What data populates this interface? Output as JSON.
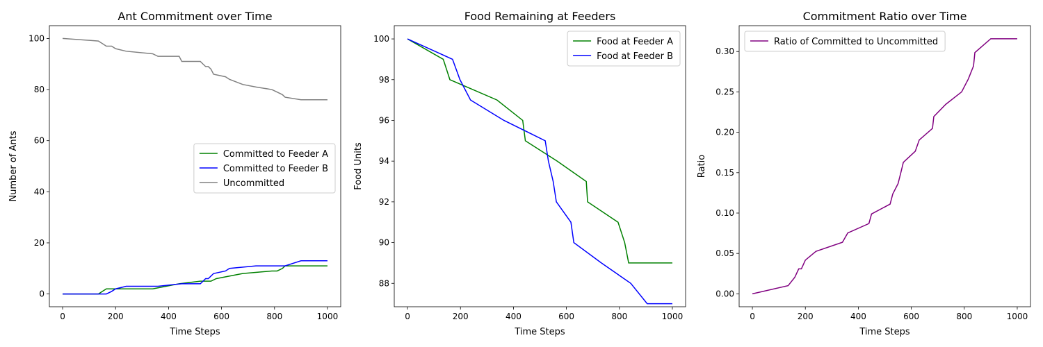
{
  "chart_data": [
    {
      "type": "line",
      "title": "Ant Commitment over Time",
      "xlabel": "Time Steps",
      "ylabel": "Number of Ants",
      "xlim": [
        -50,
        1050
      ],
      "ylim": [
        -5,
        105
      ],
      "xticks": [
        0,
        200,
        400,
        600,
        800,
        1000
      ],
      "yticks": [
        0,
        20,
        40,
        60,
        80,
        100
      ],
      "legend_position": "center-right",
      "series": [
        {
          "name": "Committed to Feeder A",
          "color": "#008000",
          "x": [
            0,
            135,
            150,
            165,
            200,
            240,
            340,
            440,
            520,
            560,
            580,
            680,
            790,
            810,
            830,
            840,
            1000
          ],
          "y": [
            0,
            0,
            1,
            2,
            2,
            2,
            2,
            4,
            5,
            5,
            6,
            8,
            9,
            9,
            10,
            11,
            11
          ]
        },
        {
          "name": "Committed to Feeder B",
          "color": "#0000ff",
          "x": [
            0,
            165,
            185,
            200,
            240,
            360,
            450,
            520,
            540,
            550,
            560,
            570,
            615,
            630,
            730,
            840,
            900,
            1000
          ],
          "y": [
            0,
            0,
            1,
            2,
            3,
            3,
            4,
            4,
            6,
            6,
            7,
            8,
            9,
            10,
            11,
            11,
            13,
            13
          ]
        },
        {
          "name": "Uncommitted",
          "color": "#808080",
          "x": [
            0,
            135,
            150,
            165,
            185,
            200,
            240,
            340,
            360,
            440,
            450,
            520,
            530,
            540,
            550,
            560,
            570,
            615,
            630,
            680,
            730,
            790,
            810,
            830,
            840,
            900,
            1000
          ],
          "y": [
            100,
            99,
            98,
            97,
            97,
            96,
            95,
            94,
            93,
            93,
            91,
            91,
            90,
            89,
            89,
            88,
            86,
            85,
            84,
            82,
            81,
            80,
            79,
            78,
            77,
            76,
            76
          ]
        }
      ]
    },
    {
      "type": "line",
      "title": "Food Remaining at Feeders",
      "xlabel": "Time Steps",
      "ylabel": "Food Units",
      "xlim": [
        -50,
        1050
      ],
      "ylim": [
        86.85,
        100.65
      ],
      "xticks": [
        0,
        200,
        400,
        600,
        800,
        1000
      ],
      "yticks": [
        88,
        90,
        92,
        94,
        96,
        98,
        100
      ],
      "legend_position": "top-right",
      "series": [
        {
          "name": "Food at Feeder A",
          "color": "#008000",
          "x": [
            0,
            135,
            160,
            338,
            435,
            445,
            565,
            675,
            680,
            795,
            820,
            835,
            1000
          ],
          "y": [
            100,
            99,
            98,
            97,
            96,
            95,
            94,
            93,
            92,
            91,
            90,
            89,
            89
          ]
        },
        {
          "name": "Food at Feeder B",
          "color": "#0000ff",
          "x": [
            0,
            170,
            198,
            238,
            364,
            520,
            532,
            550,
            562,
            617,
            628,
            732,
            843,
            905,
            1000
          ],
          "y": [
            100,
            99,
            98,
            97,
            96,
            95,
            94,
            93,
            92,
            91,
            90,
            89,
            88,
            87,
            87
          ]
        }
      ]
    },
    {
      "type": "line",
      "title": "Commitment Ratio over Time",
      "xlabel": "Time Steps",
      "ylabel": "Ratio",
      "xlim": [
        -50,
        1050
      ],
      "ylim": [
        -0.016,
        0.332
      ],
      "xticks": [
        0,
        200,
        400,
        600,
        800,
        1000
      ],
      "yticks": [
        0.0,
        0.05,
        0.1,
        0.15,
        0.2,
        0.25,
        0.3
      ],
      "legend_position": "top-left",
      "series": [
        {
          "name": "Ratio of Committed to Uncommitted",
          "color": "#800080",
          "x": [
            0,
            135,
            160,
            175,
            185,
            200,
            240,
            340,
            360,
            440,
            450,
            520,
            530,
            550,
            560,
            570,
            615,
            630,
            680,
            685,
            730,
            790,
            815,
            835,
            840,
            900,
            1000
          ],
          "y": [
            0,
            0.0101,
            0.0204,
            0.0309,
            0.0309,
            0.0417,
            0.0526,
            0.0638,
            0.0753,
            0.087,
            0.0989,
            0.1111,
            0.1236,
            0.1364,
            0.1494,
            0.1628,
            0.1765,
            0.1905,
            0.2048,
            0.2195,
            0.2346,
            0.25,
            0.2658,
            0.2821,
            0.2987,
            0.3158,
            0.3158
          ]
        }
      ]
    }
  ]
}
